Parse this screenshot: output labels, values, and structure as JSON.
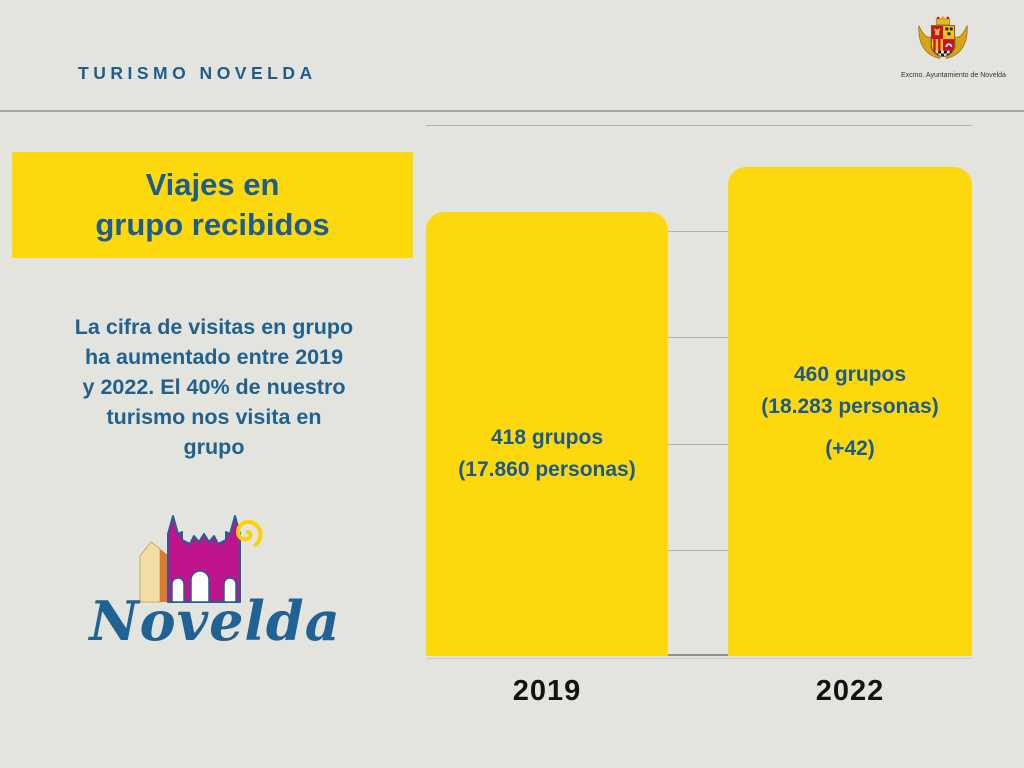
{
  "header": {
    "brand": "TURISMO NOVELDA",
    "crest_caption": "Excmo. Ayuntamiento de Novelda"
  },
  "panel": {
    "title": "Viajes en\ngrupo recibidos",
    "body": "La cifra de visitas en grupo\nha aumentado entre 2019\ny 2022. El 40% de nuestro\nturismo nos visita en\ngrupo",
    "logo_wordmark": "Novelda"
  },
  "chart_data": {
    "type": "bar",
    "title": "Viajes en grupo recibidos",
    "categories": [
      "2019",
      "2022"
    ],
    "values": [
      418,
      460
    ],
    "bar_labels": [
      [
        "418 grupos",
        "(17.860 personas)"
      ],
      [
        "460 grupos",
        "(18.283 personas)",
        "(+42)"
      ]
    ],
    "xlabel": "",
    "ylabel": "",
    "ylim": [
      0,
      500
    ],
    "gridline_step": 100,
    "grid": true,
    "legend": "none",
    "bar_color": "#fdd80c",
    "bar_label_color": "#1d5a8c"
  },
  "colors": {
    "background": "#e4e4df",
    "accent_blue": "#1d5c8e",
    "highlight_yellow": "#fdd80c",
    "gridline_gray": "#b3b3ae",
    "category_label_black": "#121212"
  }
}
